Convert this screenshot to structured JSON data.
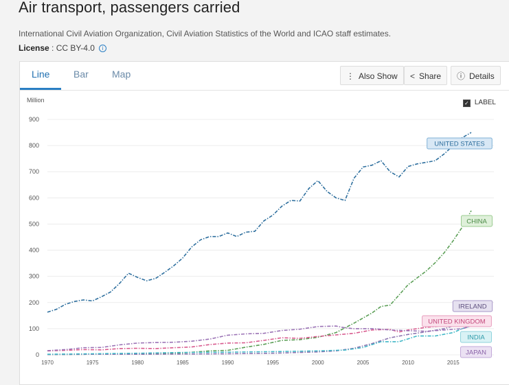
{
  "header": {
    "title": "Air transport, passengers carried",
    "source": "International Civil Aviation Organization, Civil Aviation Statistics of the World and ICAO staff estimates.",
    "license_label": "License",
    "license_value": ": CC BY-4.0"
  },
  "tabs": [
    {
      "label": "Line"
    },
    {
      "label": "Bar"
    },
    {
      "label": "Map"
    }
  ],
  "toolbar": {
    "also_show": "Also Show",
    "share": "Share",
    "details": "Details"
  },
  "label_toggle": "LABEL",
  "chart_data": {
    "type": "line",
    "ylabel": "Million",
    "ylim": [
      0,
      900
    ],
    "yticks": [
      0,
      100,
      200,
      300,
      400,
      500,
      600,
      700,
      800,
      900
    ],
    "xticks": [
      1970,
      1975,
      1980,
      1985,
      1990,
      1995,
      2000,
      2005,
      2010,
      2015
    ],
    "xlim": [
      1970,
      2017
    ],
    "series": [
      {
        "name": "UNITED STATES",
        "color": "#2e6f9e",
        "label_bg": "#d8e8f5",
        "label_border": "#7fb0d6",
        "label_color": "#2e6f9e",
        "x": [
          1970,
          1971,
          1972,
          1973,
          1974,
          1975,
          1976,
          1977,
          1978,
          1979,
          1980,
          1981,
          1982,
          1983,
          1984,
          1985,
          1986,
          1987,
          1988,
          1989,
          1990,
          1991,
          1992,
          1993,
          1994,
          1995,
          1996,
          1997,
          1998,
          1999,
          2000,
          2001,
          2002,
          2003,
          2004,
          2005,
          2006,
          2007,
          2008,
          2009,
          2010,
          2011,
          2012,
          2013,
          2014,
          2015,
          2016,
          2017
        ],
        "values": [
          163,
          174,
          193,
          204,
          210,
          206,
          222,
          240,
          273,
          312,
          296,
          283,
          292,
          315,
          340,
          370,
          412,
          440,
          452,
          452,
          466,
          452,
          469,
          472,
          512,
          534,
          568,
          590,
          588,
          636,
          666,
          625,
          600,
          590,
          675,
          718,
          725,
          742,
          700,
          680,
          720,
          730,
          736,
          742,
          768,
          800,
          830,
          850
        ]
      },
      {
        "name": "CHINA",
        "color": "#5a9e55",
        "label_bg": "#dff0da",
        "label_border": "#9ccc92",
        "label_color": "#4a8a45",
        "x": [
          1970,
          1975,
          1980,
          1985,
          1988,
          1990,
          1992,
          1994,
          1996,
          1998,
          2000,
          2002,
          2004,
          2006,
          2007,
          2008,
          2010,
          2012,
          2013,
          2014,
          2015,
          2016,
          2017
        ],
        "values": [
          1,
          2,
          3,
          7,
          15,
          17,
          29,
          40,
          55,
          58,
          67,
          85,
          121,
          160,
          185,
          190,
          268,
          320,
          352,
          390,
          436,
          488,
          551
        ]
      },
      {
        "name": "IRELAND",
        "color": "#8a73b0",
        "label_bg": "#e6e1f0",
        "label_border": "#a898c8",
        "label_color": "#5d4f7e",
        "x": [
          1970,
          1975,
          1980,
          1985,
          1990,
          1995,
          2000,
          2002,
          2004,
          2006,
          2008,
          2010,
          2012,
          2014,
          2015,
          2016,
          2017
        ],
        "values": [
          1,
          2,
          2,
          3,
          4,
          6,
          11,
          15,
          25,
          43,
          65,
          78,
          88,
          100,
          110,
          125,
          150
        ]
      },
      {
        "name": "UNITED KINGDOM",
        "color": "#d85a8e",
        "label_bg": "#fbe1ec",
        "label_border": "#e79cbc",
        "label_color": "#c2477a",
        "x": [
          1970,
          1972,
          1974,
          1976,
          1978,
          1980,
          1982,
          1984,
          1986,
          1988,
          1990,
          1992,
          1994,
          1996,
          1998,
          2000,
          2002,
          2004,
          2006,
          2008,
          2009,
          2010,
          2012,
          2014,
          2016,
          2017
        ],
        "values": [
          15,
          17,
          20,
          19,
          24,
          25,
          24,
          27,
          30,
          39,
          45,
          46,
          55,
          65,
          63,
          70,
          76,
          82,
          95,
          97,
          87,
          95,
          105,
          110,
          130,
          140
        ]
      },
      {
        "name": "INDIA",
        "color": "#3fb6c6",
        "label_bg": "#d9f2f5",
        "label_border": "#8fd3dc",
        "label_color": "#2e9aa8",
        "x": [
          1970,
          1975,
          1980,
          1985,
          1990,
          1995,
          2000,
          2003,
          2005,
          2007,
          2009,
          2011,
          2013,
          2015,
          2016,
          2017
        ],
        "values": [
          2,
          4,
          6,
          9,
          10,
          12,
          15,
          18,
          28,
          50,
          50,
          72,
          72,
          85,
          100,
          110
        ]
      },
      {
        "name": "JAPAN",
        "color": "#9a72b5",
        "label_bg": "#ebe1f3",
        "label_border": "#c2a9d8",
        "label_color": "#8a63a8",
        "x": [
          1970,
          1972,
          1974,
          1976,
          1978,
          1980,
          1982,
          1984,
          1986,
          1988,
          1990,
          1992,
          1994,
          1996,
          1998,
          2000,
          2002,
          2003,
          2004,
          2006,
          2008,
          2010,
          2012,
          2014,
          2016,
          2017
        ],
        "values": [
          16,
          20,
          27,
          28,
          38,
          45,
          47,
          48,
          52,
          60,
          75,
          80,
          82,
          93,
          98,
          108,
          110,
          103,
          100,
          100,
          95,
          92,
          90,
          95,
          100,
          110
        ]
      }
    ]
  }
}
